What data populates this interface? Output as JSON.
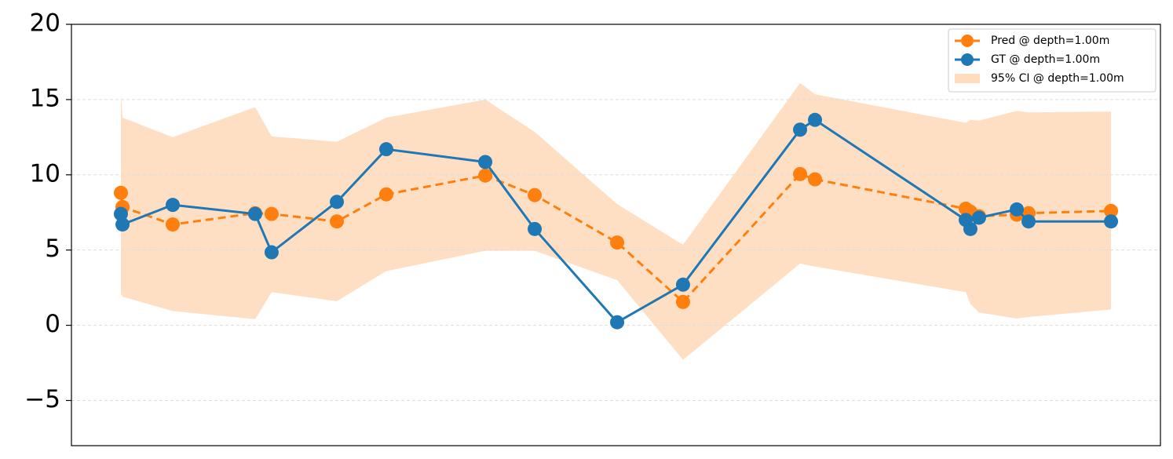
{
  "chart_data": {
    "type": "line",
    "x": [
      4.54,
      4.69,
      9.3,
      16.87,
      18.38,
      24.37,
      28.91,
      38.0,
      42.54,
      50.11,
      56.16,
      66.91,
      68.28,
      82.12,
      82.55,
      83.34,
      86.81,
      87.89,
      95.46
    ],
    "xlim": [
      0,
      100
    ],
    "series": [
      {
        "name": "Pred @ depth=1.00m",
        "color": "#ff7f0e",
        "dashed": true,
        "values": [
          8.8,
          7.86,
          6.7,
          7.45,
          7.4,
          6.9,
          8.7,
          9.95,
          8.65,
          5.5,
          1.55,
          10.05,
          9.7,
          7.75,
          7.55,
          7.25,
          7.35,
          7.45,
          7.6
        ]
      },
      {
        "name": "GT @ depth=1.00m",
        "color": "#1f77b4",
        "dashed": false,
        "values": [
          7.4,
          6.7,
          8.0,
          7.4,
          4.85,
          8.2,
          11.7,
          10.85,
          6.4,
          0.2,
          2.7,
          13.0,
          13.65,
          7.0,
          6.4,
          7.15,
          7.7,
          6.9,
          6.9
        ]
      }
    ],
    "band": {
      "name": "95% CI @ depth=1.00m",
      "color": "#ffdcbd",
      "upper": [
        15.35,
        13.8,
        12.5,
        14.5,
        12.55,
        12.2,
        13.8,
        15.0,
        12.85,
        8.05,
        5.35,
        16.1,
        15.35,
        13.45,
        13.65,
        13.6,
        14.25,
        14.15,
        14.2
      ],
      "lower": [
        2.1,
        1.9,
        0.95,
        0.4,
        2.2,
        1.6,
        3.6,
        4.95,
        4.95,
        3.0,
        -2.3,
        4.1,
        3.9,
        2.2,
        1.4,
        0.85,
        0.45,
        0.55,
        1.05
      ]
    },
    "ylim": [
      -8,
      20
    ],
    "yticks": [
      {
        "value": -5,
        "label": "−5"
      },
      0,
      5,
      10,
      15,
      20
    ],
    "grid": true,
    "legend": "upper right"
  }
}
